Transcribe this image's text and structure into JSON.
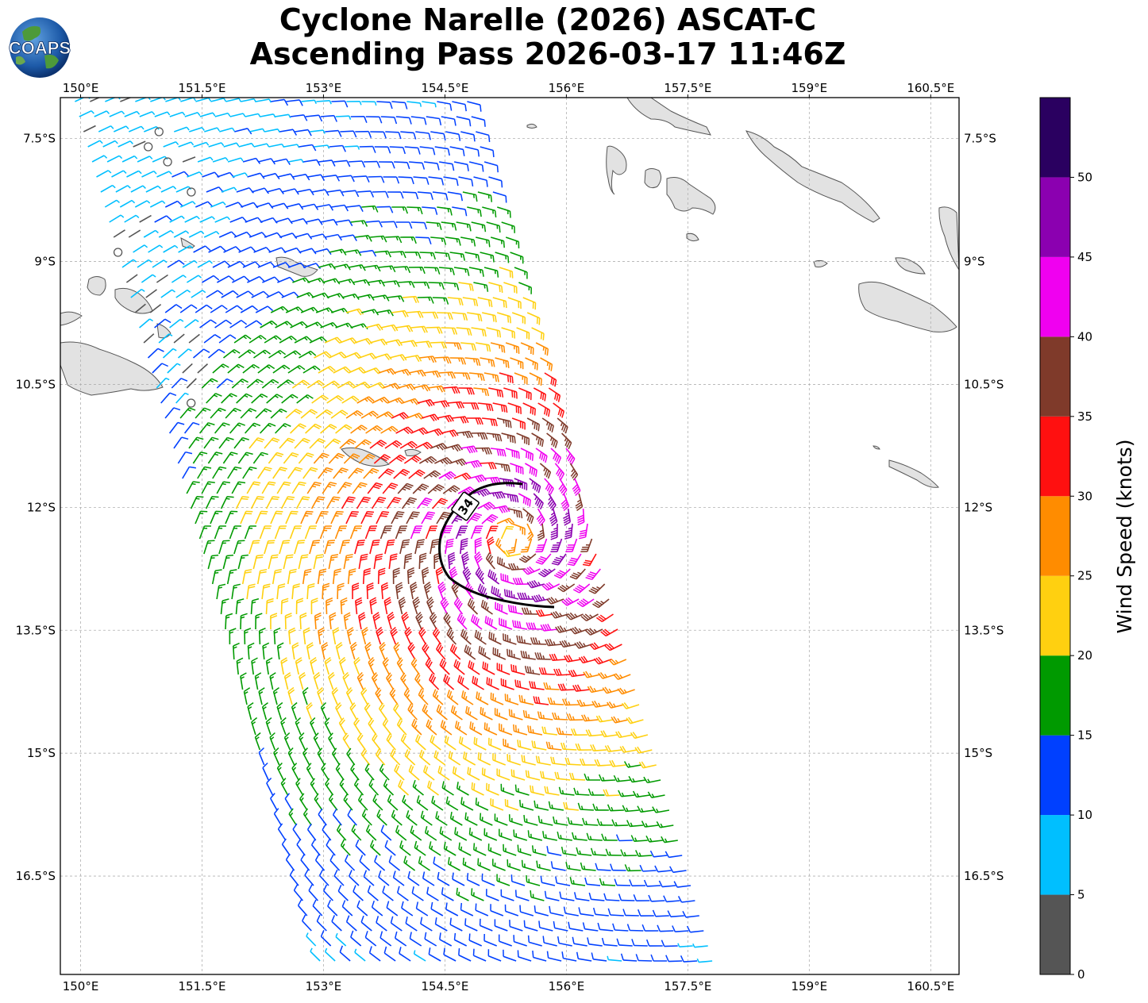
{
  "title": {
    "line1": "Cyclone Narelle (2026) ASCAT-C",
    "line2": "Ascending Pass 2026-03-17 11:46Z"
  },
  "logo": {
    "text": "COAPS",
    "icon": "globe-icon"
  },
  "map": {
    "lon_labels": [
      "150°E",
      "151.5°E",
      "153°E",
      "154.5°E",
      "156°E",
      "157.5°E",
      "159°E",
      "160.5°E"
    ],
    "lat_labels": [
      "7.5°S",
      "9°S",
      "10.5°S",
      "12°S",
      "13.5°S",
      "15°S",
      "16.5°S"
    ],
    "lon_range": [
      149.75,
      160.85
    ],
    "lat_range": [
      -17.7,
      -7.0
    ],
    "wind_radius_label": "34",
    "storm_center": {
      "lon": 155.2,
      "lat": -12.5
    },
    "gridlines": true
  },
  "colorbar": {
    "label": "Wind Speed (knots)",
    "ticks": [
      "0",
      "5",
      "10",
      "15",
      "20",
      "25",
      "30",
      "35",
      "40",
      "45",
      "50"
    ],
    "bins": [
      {
        "min": 0,
        "max": 5,
        "color": "#555555"
      },
      {
        "min": 5,
        "max": 10,
        "color": "#00bfff"
      },
      {
        "min": 10,
        "max": 15,
        "color": "#0040ff"
      },
      {
        "min": 15,
        "max": 20,
        "color": "#009a00"
      },
      {
        "min": 20,
        "max": 25,
        "color": "#ffd010"
      },
      {
        "min": 25,
        "max": 30,
        "color": "#ff8c00"
      },
      {
        "min": 30,
        "max": 35,
        "color": "#ff1010"
      },
      {
        "min": 35,
        "max": 40,
        "color": "#7f3a2a"
      },
      {
        "min": 40,
        "max": 45,
        "color": "#f000f0"
      },
      {
        "min": 45,
        "max": 50,
        "color": "#8b00b0"
      },
      {
        "min": 50,
        "max": 55,
        "color": "#2a0060"
      }
    ]
  }
}
